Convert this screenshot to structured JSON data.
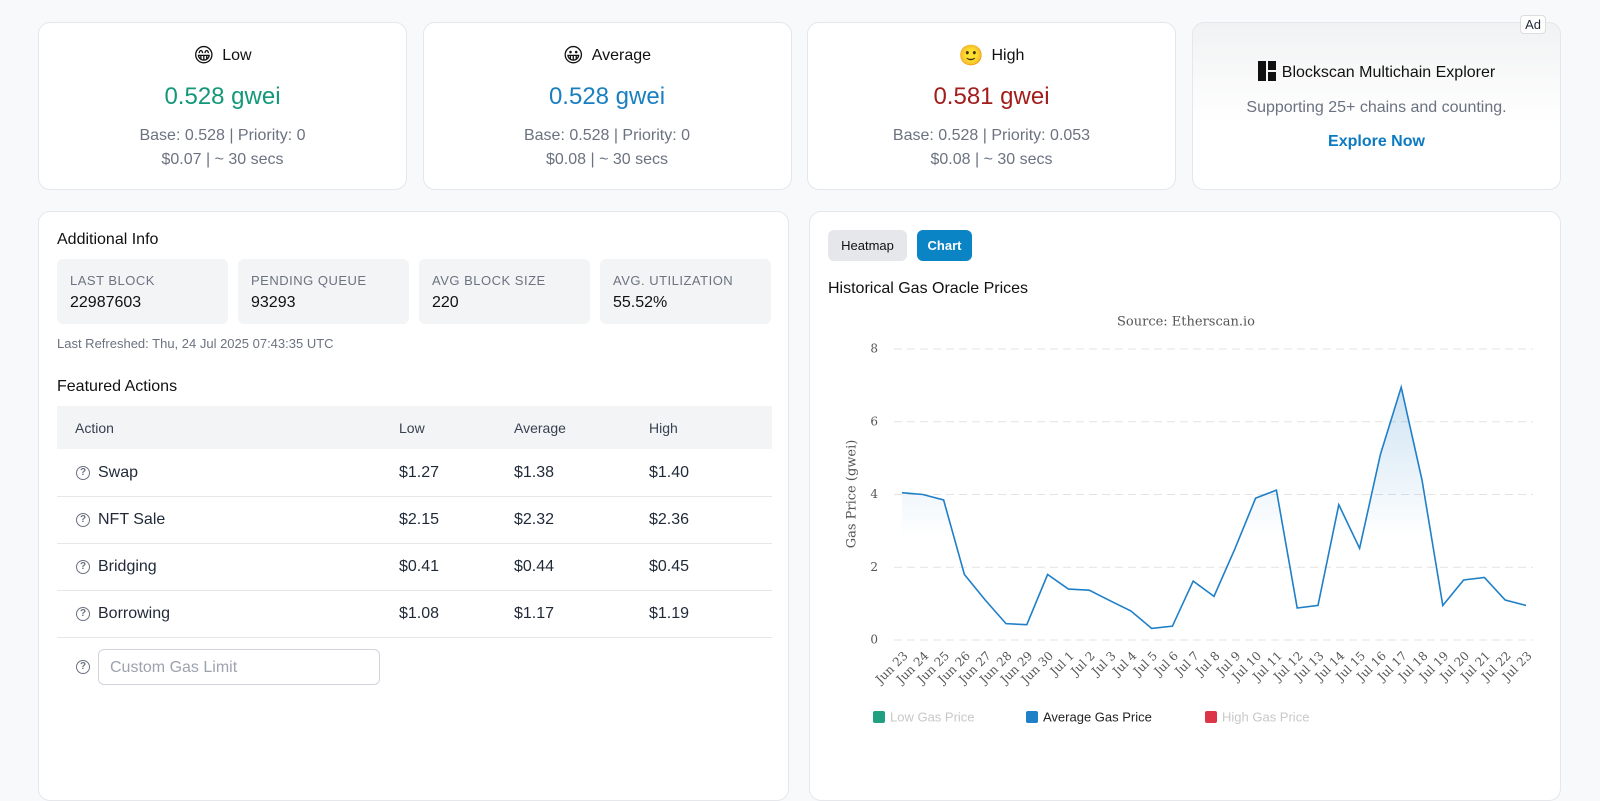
{
  "cards": [
    {
      "label": "Low",
      "price": "0.528 gwei",
      "detail": "Base: 0.528 | Priority: 0",
      "cost": "$0.07 | ~ 30 secs",
      "color": "#14987a"
    },
    {
      "label": "Average",
      "price": "0.528 gwei",
      "detail": "Base: 0.528 | Priority: 0",
      "cost": "$0.08 | ~ 30 secs",
      "color": "#1a7fc1"
    },
    {
      "label": "High",
      "price": "0.581 gwei",
      "detail": "Base: 0.528 | Priority: 0.053",
      "cost": "$0.08 | ~ 30 secs",
      "color": "#a31d1d"
    }
  ],
  "ad": {
    "badge": "Ad",
    "title": "Blockscan Multichain Explorer",
    "subtitle": "Supporting 25+ chains and counting.",
    "link": "Explore Now"
  },
  "additional_info": {
    "title": "Additional Info",
    "stats": [
      {
        "label": "LAST BLOCK",
        "value": "22987603"
      },
      {
        "label": "PENDING QUEUE",
        "value": "93293"
      },
      {
        "label": "AVG BLOCK SIZE",
        "value": "220"
      },
      {
        "label": "AVG. UTILIZATION",
        "value": "55.52%"
      }
    ],
    "refreshed": "Last Refreshed: Thu, 24 Jul 2025 07:43:35 UTC"
  },
  "featured_actions": {
    "title": "Featured Actions",
    "headers": [
      "Action",
      "Low",
      "Average",
      "High"
    ],
    "rows": [
      [
        "Swap",
        "$1.27",
        "$1.38",
        "$1.40"
      ],
      [
        "NFT Sale",
        "$2.15",
        "$2.32",
        "$2.36"
      ],
      [
        "Bridging",
        "$0.41",
        "$0.44",
        "$0.45"
      ],
      [
        "Borrowing",
        "$1.08",
        "$1.17",
        "$1.19"
      ]
    ],
    "custom_placeholder": "Custom Gas Limit"
  },
  "tabs": [
    "Heatmap",
    "Chart"
  ],
  "chart_data": {
    "type": "line",
    "title": "Historical Gas Oracle Prices",
    "subtitle": "Source: Etherscan.io",
    "y_label": "Gas Price (gwei)",
    "categories": [
      "Jun 23",
      "Jun 24",
      "Jun 25",
      "Jun 26",
      "Jun 27",
      "Jun 28",
      "Jun 29",
      "Jun 30",
      "Jul 1",
      "Jul 2",
      "Jul 3",
      "Jul 4",
      "Jul 5",
      "Jul 6",
      "Jul 7",
      "Jul 8",
      "Jul 9",
      "Jul 10",
      "Jul 11",
      "Jul 12",
      "Jul 13",
      "Jul 14",
      "Jul 15",
      "Jul 16",
      "Jul 17",
      "Jul 18",
      "Jul 19",
      "Jul 20",
      "Jul 21",
      "Jul 22",
      "Jul 23"
    ],
    "series": [
      {
        "name": "Low Gas Price",
        "color": "#20a080",
        "hidden": true
      },
      {
        "name": "Average Gas Price",
        "color": "#1f7fc7",
        "values": [
          4.05,
          4.0,
          3.85,
          1.8,
          1.1,
          0.45,
          0.42,
          1.8,
          1.4,
          1.37,
          1.08,
          0.8,
          0.32,
          0.38,
          1.62,
          1.2,
          2.5,
          3.9,
          4.12,
          0.88,
          0.95,
          3.72,
          2.52,
          5.1,
          6.95,
          4.4,
          0.95,
          1.65,
          1.72,
          1.1,
          0.95
        ]
      },
      {
        "name": "High Gas Price",
        "color": "#dc3545",
        "hidden": true
      }
    ],
    "ylim": [
      0,
      8
    ],
    "yticks": [
      0,
      2,
      4,
      6,
      8
    ],
    "grid": true
  }
}
